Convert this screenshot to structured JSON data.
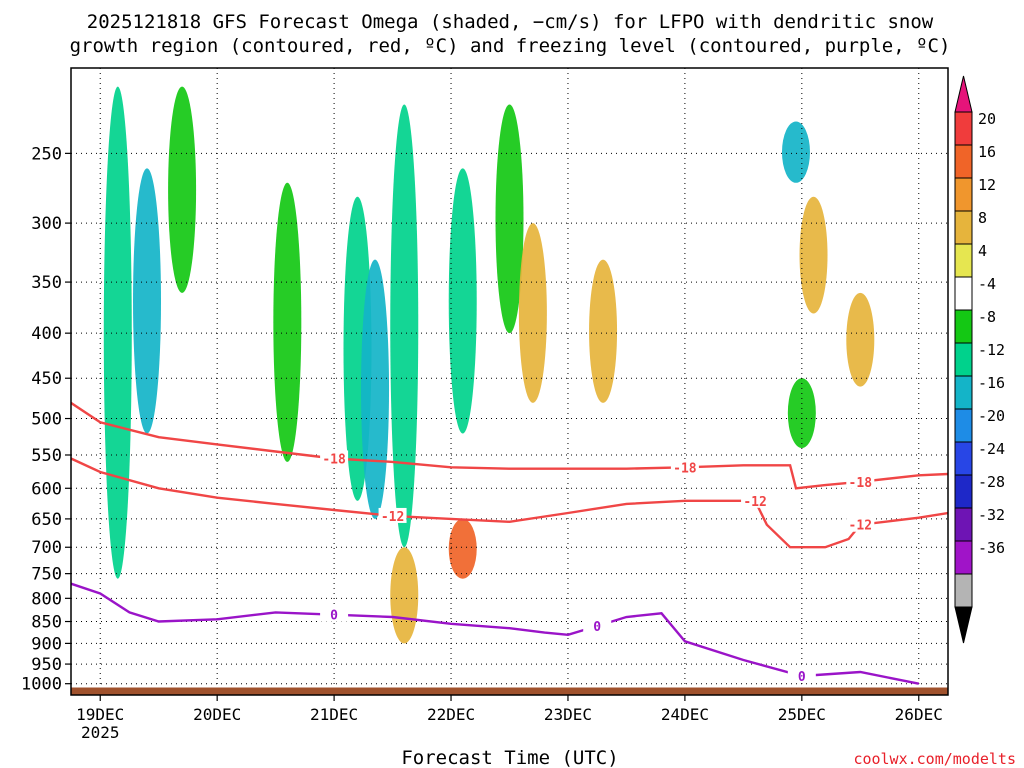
{
  "chart_data": {
    "type": "heatmap",
    "title_line1": "2025121818 GFS Forecast Omega (shaded, −cm/s) for LFPO with dendritic snow",
    "title_line2": "growth region (contoured, red, ºC) and freezing level (contoured, purple, ºC)",
    "xlabel": "Forecast Time (UTC)",
    "credit": "coolwx.com/modelts",
    "x_ticks": [
      "19DEC",
      "20DEC",
      "21DEC",
      "22DEC",
      "23DEC",
      "24DEC",
      "25DEC",
      "26DEC"
    ],
    "x_year": "2025",
    "x_range_days": [
      -0.25,
      7.25
    ],
    "y_ticks": [
      "250",
      "300",
      "350",
      "400",
      "450",
      "500",
      "550",
      "600",
      "650",
      "700",
      "750",
      "800",
      "850",
      "900",
      "950",
      "1000"
    ],
    "y_values_hpa": [
      250,
      300,
      350,
      400,
      450,
      500,
      550,
      600,
      650,
      700,
      750,
      800,
      850,
      900,
      950,
      1000
    ],
    "y_range_hpa": [
      200,
      1030
    ],
    "colorbar_levels": [
      "20",
      "16",
      "12",
      "8",
      "4",
      "-4",
      "-8",
      "-12",
      "-16",
      "-20",
      "-24",
      "-28",
      "-32",
      "-36"
    ],
    "colorbar_colors": [
      "#f03c3c",
      "#f06428",
      "#f0962d",
      "#e6b43c",
      "#e6e650",
      "#ffffff",
      "#14c814",
      "#00d28c",
      "#14b4c8",
      "#1e8ce6",
      "#2846e6",
      "#1e28c8",
      "#6e14b4",
      "#a014c8",
      "#b4b4b4",
      "#000000",
      "#e6147a"
    ],
    "contours": [
      {
        "name": "-18 ºC",
        "label": "-18",
        "color": "#f04646",
        "points": [
          [
            -0.25,
            480
          ],
          [
            0.0,
            505
          ],
          [
            0.5,
            525
          ],
          [
            1.0,
            535
          ],
          [
            1.5,
            545
          ],
          [
            2.0,
            555
          ],
          [
            2.5,
            560
          ],
          [
            3.0,
            568
          ],
          [
            3.5,
            570
          ],
          [
            4.0,
            570
          ],
          [
            4.5,
            570
          ],
          [
            5.0,
            568
          ],
          [
            5.5,
            565
          ],
          [
            5.9,
            565
          ],
          [
            5.95,
            600
          ],
          [
            6.2,
            595
          ],
          [
            6.5,
            590
          ],
          [
            7.0,
            580
          ],
          [
            7.25,
            578
          ]
        ]
      },
      {
        "name": "-12 ºC",
        "label": "-12",
        "color": "#f04646",
        "points": [
          [
            -0.25,
            555
          ],
          [
            0.0,
            575
          ],
          [
            0.5,
            600
          ],
          [
            1.0,
            615
          ],
          [
            1.5,
            625
          ],
          [
            2.0,
            635
          ],
          [
            2.5,
            645
          ],
          [
            3.0,
            650
          ],
          [
            3.5,
            655
          ],
          [
            4.0,
            640
          ],
          [
            4.5,
            625
          ],
          [
            5.0,
            620
          ],
          [
            5.6,
            620
          ],
          [
            5.7,
            660
          ],
          [
            5.9,
            700
          ],
          [
            6.2,
            700
          ],
          [
            6.4,
            685
          ],
          [
            6.5,
            660
          ],
          [
            7.0,
            648
          ],
          [
            7.25,
            640
          ]
        ]
      },
      {
        "name": "0 ºC freezing level",
        "label": "0",
        "color": "#9a14c8",
        "points": [
          [
            -0.25,
            770
          ],
          [
            0.0,
            790
          ],
          [
            0.25,
            830
          ],
          [
            0.5,
            850
          ],
          [
            1.0,
            845
          ],
          [
            1.5,
            830
          ],
          [
            2.0,
            835
          ],
          [
            2.5,
            840
          ],
          [
            3.0,
            855
          ],
          [
            3.5,
            865
          ],
          [
            3.8,
            875
          ],
          [
            4.0,
            880
          ],
          [
            4.25,
            860
          ],
          [
            4.5,
            840
          ],
          [
            4.8,
            832
          ],
          [
            5.0,
            895
          ],
          [
            5.5,
            940
          ],
          [
            6.0,
            980
          ],
          [
            6.5,
            970
          ],
          [
            7.0,
            1000
          ]
        ]
      }
    ],
    "omega_regions": [
      {
        "t": 0.15,
        "p0": 210,
        "p1": 760,
        "value": -10
      },
      {
        "t": 0.4,
        "p0": 260,
        "p1": 520,
        "value": -12
      },
      {
        "t": 0.7,
        "p0": 210,
        "p1": 360,
        "value": -7
      },
      {
        "t": 1.6,
        "p0": 270,
        "p1": 560,
        "value": -6
      },
      {
        "t": 2.2,
        "p0": 280,
        "p1": 620,
        "value": -8
      },
      {
        "t": 2.35,
        "p0": 330,
        "p1": 650,
        "value": -14
      },
      {
        "t": 2.6,
        "p0": 220,
        "p1": 700,
        "value": -9
      },
      {
        "t": 3.1,
        "p0": 260,
        "p1": 520,
        "value": -8
      },
      {
        "t": 3.5,
        "p0": 220,
        "p1": 400,
        "value": -7
      },
      {
        "t": 2.6,
        "p0": 700,
        "p1": 900,
        "value": 10
      },
      {
        "t": 3.1,
        "p0": 650,
        "p1": 760,
        "value": 16
      },
      {
        "t": 3.7,
        "p0": 300,
        "p1": 480,
        "value": 8
      },
      {
        "t": 4.3,
        "p0": 330,
        "p1": 480,
        "value": 9
      },
      {
        "t": 6.1,
        "p0": 280,
        "p1": 380,
        "value": 8
      },
      {
        "t": 6.5,
        "p0": 360,
        "p1": 460,
        "value": 9
      },
      {
        "t": 5.95,
        "p0": 230,
        "p1": 270,
        "value": -12
      },
      {
        "t": 6.0,
        "p0": 450,
        "p1": 540,
        "value": -7
      }
    ],
    "ground_hpa": 1010
  }
}
